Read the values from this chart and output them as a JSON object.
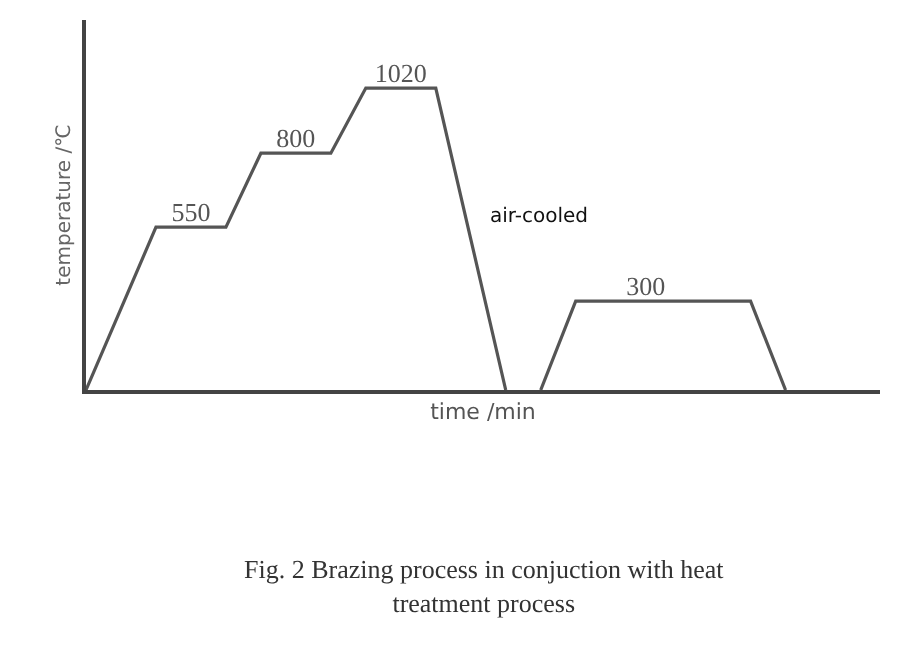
{
  "chart_data": {
    "type": "line",
    "ylim": [
      0,
      1250
    ],
    "xlabel": "time /min",
    "ylabel": "temperature /℃",
    "categories": [
      null,
      null,
      null,
      null,
      null,
      null,
      null,
      null,
      null,
      null,
      null,
      null,
      null,
      null,
      null,
      null,
      null,
      null,
      null,
      null,
      null
    ],
    "series": [
      {
        "color": "#555555",
        "values": [
          0,
          275,
          550,
          550,
          550,
          800,
          800,
          800,
          1020,
          1020,
          1020,
          510,
          0,
          null,
          null,
          null,
          null,
          null,
          null,
          null,
          null
        ],
        "value_labels": [
          null,
          null,
          null,
          "550",
          null,
          null,
          "800",
          null,
          null,
          "1020",
          null,
          null,
          null,
          null,
          null,
          null,
          null,
          null,
          null,
          null,
          null
        ]
      },
      {
        "color": "#555555",
        "values": [
          null,
          null,
          null,
          null,
          null,
          null,
          null,
          null,
          null,
          null,
          null,
          null,
          null,
          0,
          300,
          300,
          300,
          300,
          300,
          300,
          0
        ],
        "value_labels": [
          null,
          null,
          null,
          null,
          null,
          null,
          null,
          null,
          null,
          null,
          null,
          null,
          null,
          null,
          null,
          null,
          "300",
          null,
          null,
          null,
          null
        ]
      }
    ],
    "annotations": [
      "air-cooled",
      "Fig. 2 Brazing process in conjuction with heat treatment process"
    ],
    "marker": "none",
    "line_style": "solid"
  }
}
